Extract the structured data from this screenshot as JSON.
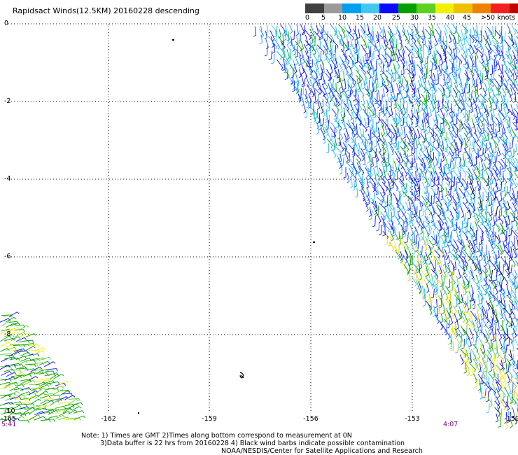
{
  "title": "Rapidsact Winds(12.5KM) 20160228 descending",
  "legend": {
    "labels": [
      "0",
      "5",
      "10",
      "15",
      "20",
      "25",
      "30",
      "35",
      "40",
      "45",
      ">50 knots"
    ],
    "colors": [
      "#404040",
      "#9a9a9a",
      "#00a0f0",
      "#40c8f0",
      "#0a0aff",
      "#00a000",
      "#60d020",
      "#f0f000",
      "#f0c000",
      "#f08000",
      "#f02020",
      "#c00000",
      "#905a3a",
      "#a07850",
      "#e000e0",
      "#9000d0"
    ]
  },
  "axes": {
    "y_ticks": [
      "0",
      "-2",
      "-4",
      "-6",
      "-8",
      "-10"
    ],
    "x_ticks": [
      "-165",
      "-162",
      "-159",
      "-156",
      "-153",
      "-150"
    ]
  },
  "times": {
    "left": "5:41",
    "right": "4:07"
  },
  "notes": {
    "line1": "Note: 1) Times are GMT 2)Times along bottom correspond to measurement at 0N",
    "line2": "3)Data buffer is 22 hrs from 20160228 4) Black wind barbs indicate possible contamination",
    "line3": "NOAA/NESDIS/Center for Satellite Applications and Research"
  },
  "colors": {
    "axis": "#000000",
    "grid": "#000000",
    "time_label": "#7a0a7a"
  }
}
